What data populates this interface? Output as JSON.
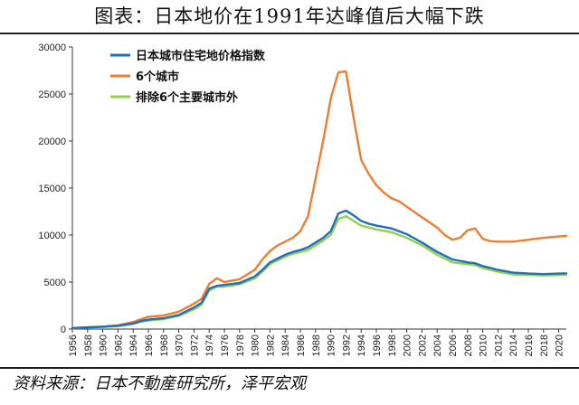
{
  "title": "图表：日本地价在1991年达峰值后大幅下跌",
  "source": "资料来源：日本不動産研究所，泽平宏观",
  "chart_data": {
    "type": "line",
    "xlabel": "",
    "ylabel": "",
    "xlim": [
      1956,
      2021
    ],
    "ylim": [
      0,
      30000
    ],
    "yticks": [
      0,
      5000,
      10000,
      15000,
      20000,
      25000,
      30000
    ],
    "xticks": [
      1956,
      1958,
      1960,
      1962,
      1964,
      1966,
      1968,
      1970,
      1972,
      1974,
      1976,
      1978,
      1980,
      1982,
      1984,
      1986,
      1988,
      1990,
      1992,
      1994,
      1996,
      1998,
      2000,
      2002,
      2004,
      2006,
      2008,
      2010,
      2012,
      2014,
      2016,
      2018,
      2020
    ],
    "legend_position": "top-left",
    "series": [
      {
        "name": "日本城市住宅地价格指数",
        "color": "#1f6fbf",
        "points": [
          [
            1956,
            100
          ],
          [
            1958,
            180
          ],
          [
            1960,
            250
          ],
          [
            1962,
            350
          ],
          [
            1964,
            600
          ],
          [
            1965,
            850
          ],
          [
            1966,
            1000
          ],
          [
            1968,
            1150
          ],
          [
            1970,
            1500
          ],
          [
            1972,
            2300
          ],
          [
            1973,
            2800
          ],
          [
            1974,
            4300
          ],
          [
            1975,
            4600
          ],
          [
            1976,
            4700
          ],
          [
            1978,
            4900
          ],
          [
            1980,
            5600
          ],
          [
            1981,
            6300
          ],
          [
            1982,
            7100
          ],
          [
            1983,
            7500
          ],
          [
            1984,
            7900
          ],
          [
            1985,
            8200
          ],
          [
            1986,
            8400
          ],
          [
            1987,
            8700
          ],
          [
            1988,
            9200
          ],
          [
            1989,
            9700
          ],
          [
            1990,
            10400
          ],
          [
            1991,
            12300
          ],
          [
            1992,
            12600
          ],
          [
            1993,
            12100
          ],
          [
            1994,
            11500
          ],
          [
            1995,
            11200
          ],
          [
            1996,
            11000
          ],
          [
            1998,
            10700
          ],
          [
            2000,
            10100
          ],
          [
            2002,
            9200
          ],
          [
            2004,
            8200
          ],
          [
            2006,
            7400
          ],
          [
            2008,
            7100
          ],
          [
            2009,
            7000
          ],
          [
            2010,
            6700
          ],
          [
            2012,
            6300
          ],
          [
            2014,
            6000
          ],
          [
            2016,
            5900
          ],
          [
            2018,
            5850
          ],
          [
            2020,
            5900
          ],
          [
            2021,
            5920
          ]
        ]
      },
      {
        "name": "6个城市",
        "color": "#ed7d31",
        "points": [
          [
            1956,
            100
          ],
          [
            1958,
            180
          ],
          [
            1960,
            260
          ],
          [
            1962,
            400
          ],
          [
            1964,
            750
          ],
          [
            1965,
            1050
          ],
          [
            1966,
            1300
          ],
          [
            1968,
            1450
          ],
          [
            1970,
            1850
          ],
          [
            1972,
            2700
          ],
          [
            1973,
            3200
          ],
          [
            1974,
            4800
          ],
          [
            1975,
            5400
          ],
          [
            1976,
            5000
          ],
          [
            1978,
            5300
          ],
          [
            1980,
            6300
          ],
          [
            1981,
            7400
          ],
          [
            1982,
            8300
          ],
          [
            1983,
            8900
          ],
          [
            1984,
            9300
          ],
          [
            1985,
            9700
          ],
          [
            1986,
            10400
          ],
          [
            1987,
            12000
          ],
          [
            1988,
            16000
          ],
          [
            1989,
            20000
          ],
          [
            1990,
            24500
          ],
          [
            1991,
            27300
          ],
          [
            1992,
            27400
          ],
          [
            1993,
            22500
          ],
          [
            1994,
            18000
          ],
          [
            1995,
            16500
          ],
          [
            1996,
            15300
          ],
          [
            1997,
            14500
          ],
          [
            1998,
            13900
          ],
          [
            1999,
            13600
          ],
          [
            2000,
            13000
          ],
          [
            2002,
            11900
          ],
          [
            2004,
            10800
          ],
          [
            2005,
            10000
          ],
          [
            2006,
            9500
          ],
          [
            2007,
            9700
          ],
          [
            2008,
            10500
          ],
          [
            2009,
            10700
          ],
          [
            2010,
            9600
          ],
          [
            2011,
            9350
          ],
          [
            2012,
            9300
          ],
          [
            2014,
            9300
          ],
          [
            2016,
            9500
          ],
          [
            2018,
            9700
          ],
          [
            2020,
            9850
          ],
          [
            2021,
            9900
          ]
        ]
      },
      {
        "name": "排除6个主要城市外",
        "color": "#92d050",
        "points": [
          [
            1956,
            100
          ],
          [
            1958,
            170
          ],
          [
            1960,
            230
          ],
          [
            1962,
            320
          ],
          [
            1964,
            550
          ],
          [
            1965,
            780
          ],
          [
            1966,
            900
          ],
          [
            1968,
            1050
          ],
          [
            1970,
            1400
          ],
          [
            1972,
            2100
          ],
          [
            1973,
            2600
          ],
          [
            1974,
            4100
          ],
          [
            1975,
            4500
          ],
          [
            1976,
            4500
          ],
          [
            1978,
            4750
          ],
          [
            1980,
            5400
          ],
          [
            1981,
            6100
          ],
          [
            1982,
            6900
          ],
          [
            1983,
            7300
          ],
          [
            1984,
            7700
          ],
          [
            1985,
            8000
          ],
          [
            1986,
            8200
          ],
          [
            1987,
            8400
          ],
          [
            1988,
            8900
          ],
          [
            1989,
            9400
          ],
          [
            1990,
            10000
          ],
          [
            1991,
            11700
          ],
          [
            1992,
            12000
          ],
          [
            1993,
            11500
          ],
          [
            1994,
            11000
          ],
          [
            1995,
            10800
          ],
          [
            1996,
            10600
          ],
          [
            1998,
            10300
          ],
          [
            2000,
            9700
          ],
          [
            2002,
            8900
          ],
          [
            2004,
            7900
          ],
          [
            2006,
            7100
          ],
          [
            2008,
            6900
          ],
          [
            2009,
            6800
          ],
          [
            2010,
            6500
          ],
          [
            2012,
            6100
          ],
          [
            2014,
            5800
          ],
          [
            2016,
            5750
          ],
          [
            2018,
            5700
          ],
          [
            2020,
            5750
          ],
          [
            2021,
            5780
          ]
        ]
      }
    ]
  }
}
